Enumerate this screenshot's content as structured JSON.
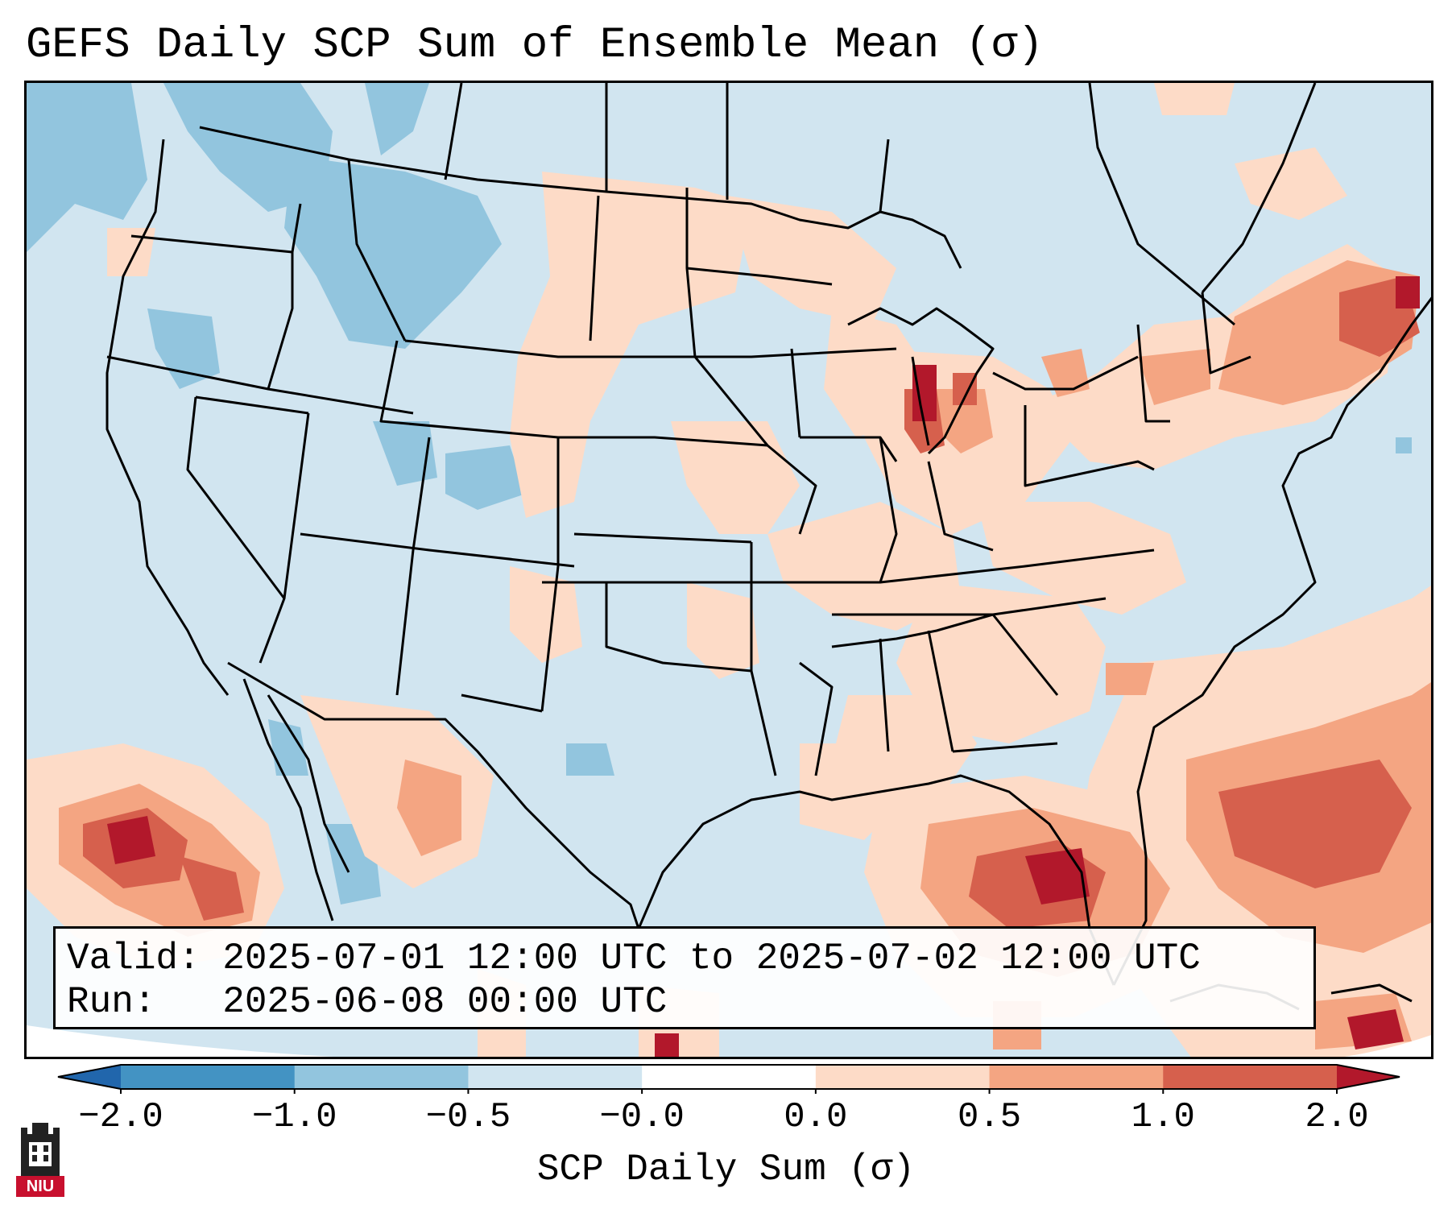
{
  "title": "GEFS Daily SCP Sum of Ensemble Mean (σ)",
  "info": {
    "valid_label": "Valid:",
    "valid_value": "2025-07-01 12:00 UTC to 2025-07-02 12:00 UTC",
    "run_label": "Run:",
    "run_value": "2025-06-08 00:00 UTC"
  },
  "colorbar": {
    "label": "SCP Daily Sum (σ)",
    "ticks": [
      "−2.0",
      "−1.0",
      "−0.5",
      "−0.0",
      "0.0",
      "0.5",
      "1.0",
      "2.0"
    ],
    "colors": [
      "#4393c3",
      "#92c5de",
      "#d1e5f0",
      "#ffffff",
      "#fddbc7",
      "#f4a582",
      "#d6604d",
      "#b2182b"
    ],
    "extend_low_color": "#2166ac",
    "extend_high_color": "#b2182b"
  },
  "logo": {
    "text": "NIU"
  }
}
